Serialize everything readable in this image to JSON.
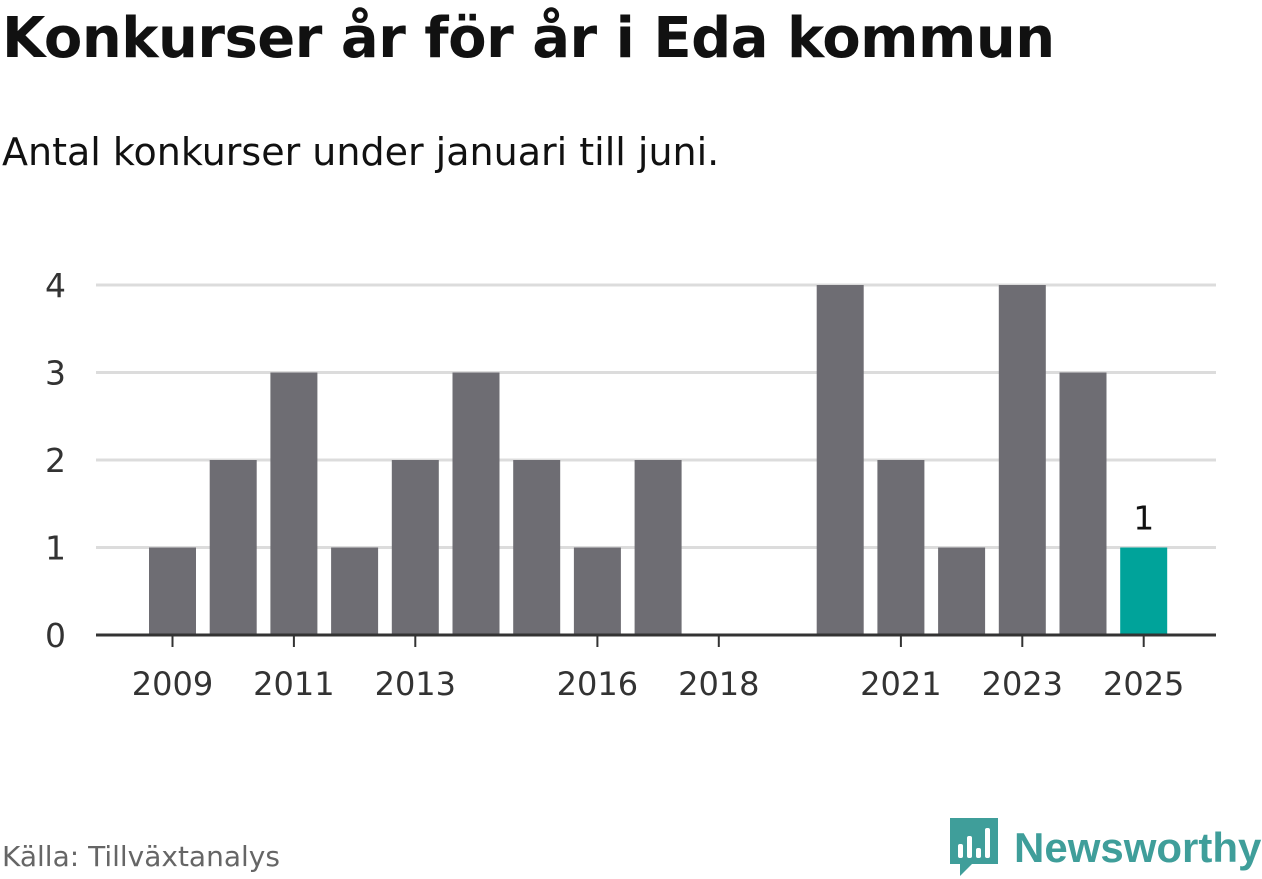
{
  "colors": {
    "bar": "#6e6d73",
    "highlight": "#00a39a",
    "grid": "#dcdcdc",
    "axis": "#333333",
    "brand": "#3f9e9a"
  },
  "footer": {
    "source": "Källa: Tillväxtanalys",
    "brand": "Newsworthy",
    "brand_icon": "newsworthy-logo-icon"
  },
  "chart_data": {
    "type": "bar",
    "title": "Konkurser år för år i Eda kommun",
    "subtitle": "Antal konkurser under januari till juni.",
    "xlabel": "",
    "ylabel": "",
    "categories": [
      "2009",
      "2010",
      "2011",
      "2012",
      "2013",
      "2014",
      "2015",
      "2016",
      "2017",
      "2018",
      "2019",
      "2020",
      "2021",
      "2022",
      "2023",
      "2024",
      "2025"
    ],
    "values": [
      1,
      2,
      3,
      1,
      2,
      3,
      2,
      1,
      2,
      0,
      0,
      4,
      2,
      1,
      4,
      3,
      1
    ],
    "x_tick_labels": [
      "2009",
      "2011",
      "2013",
      "2016",
      "2018",
      "2021",
      "2023",
      "2025"
    ],
    "y_ticks": [
      0,
      1,
      2,
      3,
      4
    ],
    "ylim": [
      0,
      4
    ],
    "grid": true,
    "legend": "none",
    "highlight_category": "2025",
    "data_labels": [
      {
        "category": "2025",
        "text": "1"
      }
    ]
  }
}
